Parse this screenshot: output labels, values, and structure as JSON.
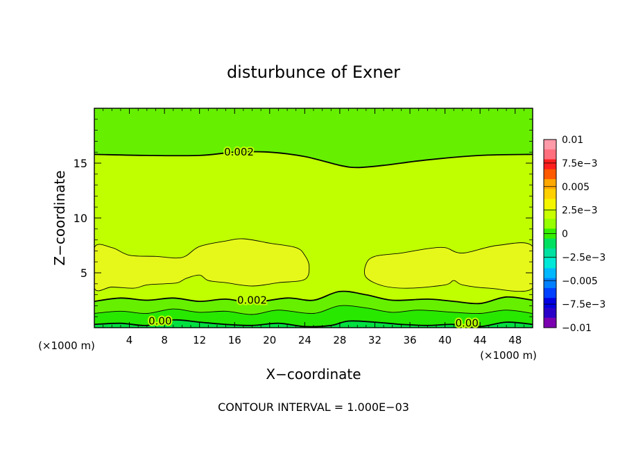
{
  "chart_data": {
    "type": "heatmap",
    "title": "disturbunce of Exner",
    "xlabel": "X−coordinate",
    "ylabel": "Z−coordinate",
    "x_unit_label": "(×1000 m)",
    "z_unit_label": "(×1000 m)",
    "xlim": [
      0,
      50
    ],
    "ylim": [
      0,
      20
    ],
    "x_ticks": [
      4,
      8,
      12,
      16,
      20,
      24,
      28,
      32,
      36,
      40,
      44,
      48
    ],
    "x_tick_labels": [
      "4",
      "8",
      "12",
      "16",
      "20",
      "24",
      "28",
      "32",
      "36",
      "40",
      "44",
      "48"
    ],
    "y_ticks": [
      5,
      10,
      15
    ],
    "y_tick_labels": [
      "5",
      "10",
      "15"
    ],
    "footer": "CONTOUR INTERVAL = 1.000E−03",
    "contour_interval": 0.001,
    "colorbar": {
      "min": -0.01,
      "max": 0.01,
      "tick_values": [
        0.01,
        0.0075,
        0.005,
        0.0025,
        0,
        -0.0025,
        -0.005,
        -0.0075,
        -0.01
      ],
      "tick_labels": [
        "0.01",
        "7.5e−3",
        "0.005",
        "2.5e−3",
        "0",
        "−2.5e−3",
        "−0.005",
        "−7.5e−3",
        "−0.01"
      ],
      "colors": [
        "#ff9aa8",
        "#ff6f7e",
        "#ff1f1f",
        "#ff5a00",
        "#ffa800",
        "#ffd000",
        "#f5f500",
        "#c8ff00",
        "#96ff00",
        "#33ee00",
        "#00e060",
        "#00e0a0",
        "#00e8d8",
        "#00b8ff",
        "#0080ff",
        "#0040ff",
        "#0000e0",
        "#2a00c8",
        "#7a00b0"
      ]
    },
    "fill_colors": {
      "band_0.000_0.001": "#00e040",
      "band_0.001_0.002": "#66f000",
      "band_0.002_0.003": "#c0ff00",
      "band_0.003_0.004": "#e6f81a"
    },
    "contour_labels": [
      {
        "text": "0.002",
        "x": 16.5,
        "z": 16.0
      },
      {
        "text": "0.002",
        "x": 18.0,
        "z": 2.5
      },
      {
        "text": "0.00",
        "x": 7.5,
        "z": 0.6
      },
      {
        "text": "0.00",
        "x": 42.5,
        "z": 0.4
      }
    ],
    "contours": [
      {
        "level": 0.002,
        "points": [
          [
            0,
            15.8
          ],
          [
            6,
            15.7
          ],
          [
            12,
            15.7
          ],
          [
            16,
            16.0
          ],
          [
            20,
            16.0
          ],
          [
            24,
            15.6
          ],
          [
            28,
            14.8
          ],
          [
            30,
            14.6
          ],
          [
            33,
            14.8
          ],
          [
            38,
            15.3
          ],
          [
            44,
            15.7
          ],
          [
            50,
            15.8
          ]
        ]
      },
      {
        "level": 0.003,
        "closed": true,
        "points": [
          [
            0,
            7.3
          ],
          [
            2,
            7.3
          ],
          [
            4,
            6.6
          ],
          [
            7,
            6.5
          ],
          [
            10,
            6.4
          ],
          [
            12,
            7.4
          ],
          [
            15,
            7.9
          ],
          [
            17,
            8.1
          ],
          [
            20,
            7.7
          ],
          [
            23,
            7.3
          ],
          [
            24,
            6.6
          ],
          [
            24.5,
            5.6
          ],
          [
            24,
            4.4
          ],
          [
            21,
            4.1
          ],
          [
            18,
            3.8
          ],
          [
            15,
            4.1
          ],
          [
            13,
            4.3
          ],
          [
            12,
            4.8
          ],
          [
            10.5,
            4.5
          ],
          [
            9.5,
            4.1
          ],
          [
            8,
            4.0
          ],
          [
            6,
            3.9
          ],
          [
            4.5,
            3.6
          ],
          [
            2,
            3.7
          ],
          [
            0,
            3.6
          ]
        ]
      },
      {
        "level": 0.003,
        "closed": true,
        "points": [
          [
            50,
            7.4
          ],
          [
            46,
            7.5
          ],
          [
            42,
            6.8
          ],
          [
            40,
            7.3
          ],
          [
            38,
            7.2
          ],
          [
            35,
            6.8
          ],
          [
            32,
            6.5
          ],
          [
            31,
            5.8
          ],
          [
            31,
            4.6
          ],
          [
            33,
            3.8
          ],
          [
            36,
            3.6
          ],
          [
            40,
            3.9
          ],
          [
            41,
            4.3
          ],
          [
            42,
            3.9
          ],
          [
            45,
            3.6
          ],
          [
            50,
            3.6
          ]
        ]
      },
      {
        "level": 0.002,
        "points": [
          [
            0,
            2.4
          ],
          [
            3,
            2.7
          ],
          [
            6,
            2.5
          ],
          [
            9,
            2.7
          ],
          [
            12,
            2.4
          ],
          [
            15,
            2.6
          ],
          [
            18,
            2.3
          ],
          [
            22,
            2.7
          ],
          [
            25,
            2.5
          ],
          [
            28,
            3.3
          ],
          [
            31,
            3.0
          ],
          [
            34,
            2.5
          ],
          [
            38,
            2.6
          ],
          [
            41,
            2.4
          ],
          [
            44,
            2.2
          ],
          [
            47,
            2.8
          ],
          [
            50,
            2.5
          ]
        ]
      },
      {
        "level": 0.001,
        "points": [
          [
            0,
            1.3
          ],
          [
            3,
            1.5
          ],
          [
            6,
            1.3
          ],
          [
            9,
            1.7
          ],
          [
            12,
            1.4
          ],
          [
            15,
            1.5
          ],
          [
            18,
            1.2
          ],
          [
            21,
            1.6
          ],
          [
            25,
            1.3
          ],
          [
            28,
            2.0
          ],
          [
            31,
            1.8
          ],
          [
            34,
            1.4
          ],
          [
            37,
            1.6
          ],
          [
            41,
            1.4
          ],
          [
            44,
            1.3
          ],
          [
            47,
            1.6
          ],
          [
            50,
            1.3
          ]
        ]
      },
      {
        "level": 0.0,
        "points": [
          [
            0,
            0.3
          ],
          [
            3,
            0.4
          ],
          [
            6,
            0.2
          ],
          [
            9,
            0.7
          ],
          [
            12,
            0.5
          ],
          [
            15,
            0.3
          ],
          [
            18,
            0.2
          ],
          [
            21,
            0.4
          ],
          [
            24,
            0.1
          ],
          [
            27,
            0.2
          ],
          [
            29,
            0.6
          ],
          [
            32,
            0.5
          ],
          [
            35,
            0.3
          ],
          [
            38,
            0.2
          ],
          [
            41,
            0.3
          ],
          [
            44,
            0.1
          ],
          [
            47,
            0.5
          ],
          [
            50,
            0.3
          ]
        ]
      }
    ]
  }
}
